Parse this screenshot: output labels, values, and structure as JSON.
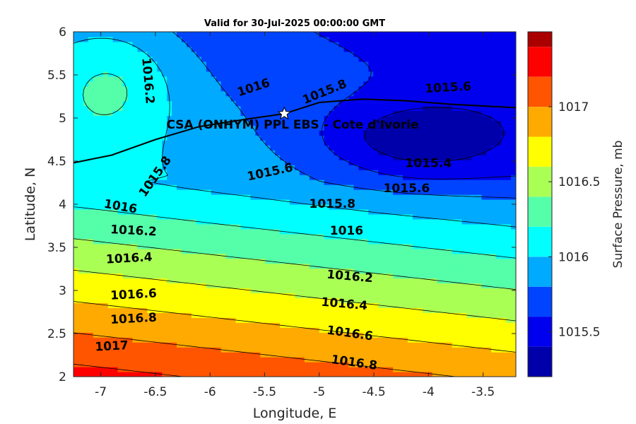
{
  "chart_data": {
    "type": "heatmap",
    "subtype": "filled-contour",
    "title": "Valid for 30-Jul-2025 00:00:00 GMT",
    "xlabel": "Longitude, E",
    "ylabel": "Latitude, N",
    "colorbar_label": "Surface Pressure, mb",
    "xlim": [
      -7.25,
      -3.2
    ],
    "ylim": [
      2,
      6
    ],
    "xticks": [
      -7,
      -6.5,
      -6,
      -5.5,
      -5,
      -4.5,
      -4,
      -3.5
    ],
    "yticks": [
      2,
      2.5,
      3,
      3.5,
      4,
      4.5,
      5,
      5.5,
      6
    ],
    "xtick_labels": [
      "-7",
      "-6.5",
      "-6",
      "-5.5",
      "-5",
      "-4.5",
      "-4",
      "-3.5"
    ],
    "ytick_labels": [
      "2",
      "2.5",
      "3",
      "3.5",
      "4",
      "4.5",
      "5",
      "5.5",
      "6"
    ],
    "colorbar": {
      "levels": [
        1015.2,
        1015.3,
        1015.4,
        1015.5,
        1015.6,
        1015.7,
        1015.8,
        1015.9,
        1016.0,
        1016.1,
        1016.2,
        1016.3,
        1016.4,
        1016.5,
        1016.6,
        1016.7,
        1016.8,
        1016.9,
        1017.0,
        1017.1,
        1017.2,
        1017.3,
        1017.4,
        1017.5
      ],
      "step": 0.1,
      "bands": [
        {
          "from": 1015.2,
          "to": 1015.4,
          "color": "#0000aa"
        },
        {
          "from": 1015.4,
          "to": 1015.6,
          "color": "#0000ee"
        },
        {
          "from": 1015.6,
          "to": 1015.8,
          "color": "#0044ff"
        },
        {
          "from": 1015.8,
          "to": 1016.0,
          "color": "#00aaff"
        },
        {
          "from": 1016.0,
          "to": 1016.2,
          "color": "#00ffff"
        },
        {
          "from": 1016.2,
          "to": 1016.4,
          "color": "#55ffaa"
        },
        {
          "from": 1016.4,
          "to": 1016.6,
          "color": "#aaff55"
        },
        {
          "from": 1016.6,
          "to": 1016.8,
          "color": "#ffff00"
        },
        {
          "from": 1016.8,
          "to": 1017.0,
          "color": "#ffaa00"
        },
        {
          "from": 1017.0,
          "to": 1017.2,
          "color": "#ff5500"
        },
        {
          "from": 1017.2,
          "to": 1017.4,
          "color": "#ff0000"
        },
        {
          "from": 1017.4,
          "to": 1017.5,
          "color": "#aa0000"
        }
      ],
      "tick_values": [
        1015.5,
        1016.0,
        1016.5,
        1017.0
      ],
      "tick_labels": [
        "1015.5",
        "1016",
        "1016.5",
        "1017"
      ]
    },
    "contour_labels": [
      {
        "text": "1017",
        "x": -6.9,
        "y": 2.35,
        "rotate": -3
      },
      {
        "text": "1016.8",
        "x": -6.7,
        "y": 2.67,
        "rotate": -3
      },
      {
        "text": "1016.6",
        "x": -6.7,
        "y": 2.95,
        "rotate": -3
      },
      {
        "text": "1016.4",
        "x": -6.74,
        "y": 3.37,
        "rotate": -3
      },
      {
        "text": "1016.2",
        "x": -6.7,
        "y": 3.69,
        "rotate": 3
      },
      {
        "text": "1016",
        "x": -6.82,
        "y": 3.97,
        "rotate": 10
      },
      {
        "text": "1015.8",
        "x": -6.5,
        "y": 4.32,
        "rotate": -55
      },
      {
        "text": "1016.2",
        "x": -6.57,
        "y": 5.43,
        "rotate": 85
      },
      {
        "text": "1016",
        "x": -5.6,
        "y": 5.35,
        "rotate": -18
      },
      {
        "text": "1015.8",
        "x": -4.95,
        "y": 5.3,
        "rotate": -22
      },
      {
        "text": "1015.6",
        "x": -3.82,
        "y": 5.35,
        "rotate": -3
      },
      {
        "text": "1015.6",
        "x": -5.45,
        "y": 4.37,
        "rotate": -12
      },
      {
        "text": "1015.4",
        "x": -4.0,
        "y": 4.47,
        "rotate": 0
      },
      {
        "text": "1015.6",
        "x": -4.2,
        "y": 4.18,
        "rotate": 0
      },
      {
        "text": "1015.8",
        "x": -4.88,
        "y": 4.0,
        "rotate": 0
      },
      {
        "text": "1016",
        "x": -4.75,
        "y": 3.69,
        "rotate": 0
      },
      {
        "text": "1016.2",
        "x": -4.72,
        "y": 3.16,
        "rotate": 5
      },
      {
        "text": "1016.4",
        "x": -4.77,
        "y": 2.84,
        "rotate": 5
      },
      {
        "text": "1016.6",
        "x": -4.72,
        "y": 2.5,
        "rotate": 8
      },
      {
        "text": "1016.8",
        "x": -4.68,
        "y": 2.16,
        "rotate": 8
      }
    ],
    "station": {
      "name": "CSA (ONHYM) PPL EBS  - Cote d'Ivorie",
      "lon": -5.32,
      "lat": 5.05
    }
  },
  "colors": {
    "coastline": "#000000",
    "contour_line": "#000000",
    "star_fill": "#ffffff"
  }
}
